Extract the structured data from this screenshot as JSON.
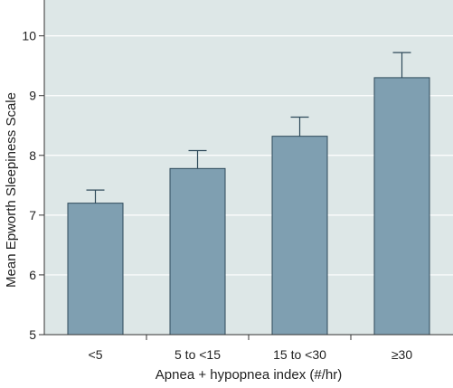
{
  "chart_data": {
    "type": "bar",
    "title": "",
    "xlabel": "Apnea + hypopnea index (#/hr)",
    "ylabel": "Mean Epworth Sleepiness Scale",
    "categories": [
      "<5",
      "5 to <15",
      "15 to <30",
      "≥30"
    ],
    "values": [
      7.2,
      7.78,
      8.32,
      9.3
    ],
    "error_upper": [
      7.42,
      8.08,
      8.64,
      9.72
    ],
    "ylim": [
      5,
      10.6
    ],
    "yticks": [
      5,
      6,
      7,
      8,
      9,
      10
    ],
    "grid": true,
    "legend": "none",
    "colors": {
      "bar_fill": "#7f9fb1",
      "bar_stroke": "#2e4a5a",
      "plot_background": "#dde7e7",
      "gridline": "#ffffff",
      "axis": "#333333"
    }
  }
}
